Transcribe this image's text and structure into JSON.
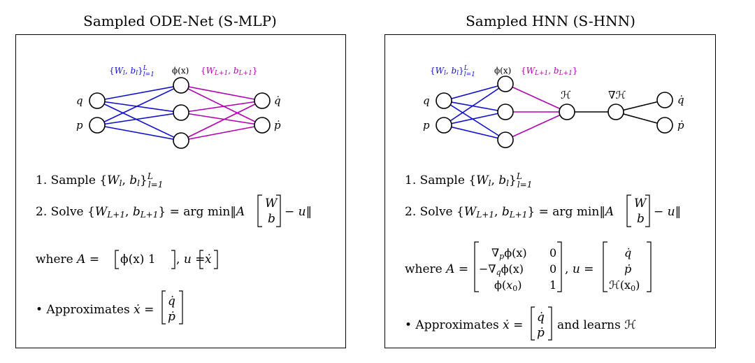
{
  "panels": [
    {
      "title": "Sampled ODE-Net (S-MLP)",
      "net": {
        "inputs": [
          "q",
          "p"
        ],
        "outputs": [
          "q̇",
          "ṗ"
        ],
        "hidden_label": "ϕ(x)",
        "sampled_params_label": "{W_l, b_l}_{l=1}^L",
        "trained_params_label": "{W_{L+1}, b_{L+1}}"
      },
      "steps": [
        "1. Sample {W_l, b_l}_{l=1}^L",
        "2. Solve {W_{L+1}, b_{L+1}} = arg min‖A [W; b] − u‖",
        "where A = [ϕ(x) 1], u = [ẋ]",
        "• Approximates ẋ = [q̇; ṗ]"
      ]
    },
    {
      "title": "Sampled HNN (S-HNN)",
      "net": {
        "inputs": [
          "q",
          "p"
        ],
        "outputs": [
          "q̇",
          "ṗ"
        ],
        "hidden_label": "ϕ(x)",
        "hamiltonian_label": "ℋ",
        "gradient_label": "∇ℋ",
        "sampled_params_label": "{W_l, b_l}_{l=1}^L",
        "trained_params_label": "{W_{L+1}, b_{L+1}}"
      },
      "steps": [
        "1. Sample {W_l, b_l}_{l=1}^L",
        "2. Solve {W_{L+1}, b_{L+1}} = arg min‖A [W; b] − u‖",
        "where A = [∇_p ϕ(x) 0; −∇_q ϕ(x) 0; ϕ(x_0) 1], u = [q̇; ṗ; ℋ(x_0)]",
        "• Approximates ẋ = [q̇; ṗ] and learns ℋ"
      ]
    }
  ],
  "text": {
    "l1": "l",
    "l": "l",
    "L": "L",
    "Lp1": "L+1",
    "x0": "0",
    "W": "W",
    "b": "b",
    "u": "u",
    "A": "A",
    "q": "q",
    "p": "p",
    "x": "x",
    "one": "1",
    "zero": "0",
    "eq": "=",
    "minus": "−",
    "minus_u": "− u‖",
    "sample": "1. Sample",
    "solve": "2. Solve",
    "argmin": "arg min‖",
    "where": "where",
    "approx": "• Approximates",
    "and_learns": "and learns",
    "phi": "ϕ",
    "phi_x": "ϕ(x)",
    "nabla": "∇",
    "H": "ℋ",
    "Hx0": "ℋ(x",
    "comma": ",",
    "l_eq_1": "l=1"
  },
  "colors": {
    "sampled": "#1010cc",
    "trained": "#b000b0",
    "fixed": "#000000"
  }
}
